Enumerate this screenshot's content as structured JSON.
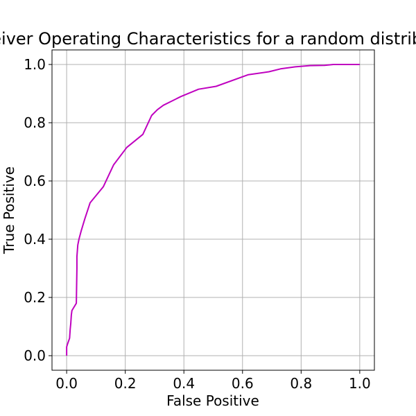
{
  "chart_data": {
    "type": "line",
    "title": "Receiver Operating Characteristics for a random distribution",
    "xlabel": "False Positive",
    "ylabel": "True Positive",
    "xlim": [
      -0.05,
      1.05
    ],
    "ylim": [
      -0.05,
      1.05
    ],
    "grid": true,
    "xticks": [
      "0.0",
      "0.2",
      "0.4",
      "0.6",
      "0.8",
      "1.0"
    ],
    "yticks": [
      "0.0",
      "0.2",
      "0.4",
      "0.6",
      "0.8",
      "1.0"
    ],
    "series": [
      {
        "color": "#bf00bf",
        "x": [
          0.0,
          0.0,
          0.003,
          0.01,
          0.012,
          0.014,
          0.016,
          0.018,
          0.033,
          0.035,
          0.035,
          0.038,
          0.042,
          0.05,
          0.062,
          0.08,
          0.125,
          0.16,
          0.205,
          0.26,
          0.29,
          0.31,
          0.33,
          0.39,
          0.45,
          0.51,
          0.62,
          0.69,
          0.73,
          0.78,
          0.83,
          0.88,
          0.91,
          1.0
        ],
        "y": [
          0.0,
          0.03,
          0.04,
          0.06,
          0.09,
          0.11,
          0.14,
          0.155,
          0.18,
          0.3,
          0.34,
          0.38,
          0.4,
          0.43,
          0.47,
          0.525,
          0.58,
          0.655,
          0.715,
          0.76,
          0.825,
          0.845,
          0.86,
          0.89,
          0.915,
          0.925,
          0.965,
          0.975,
          0.985,
          0.992,
          0.996,
          0.997,
          1.0,
          1.0
        ]
      }
    ]
  }
}
